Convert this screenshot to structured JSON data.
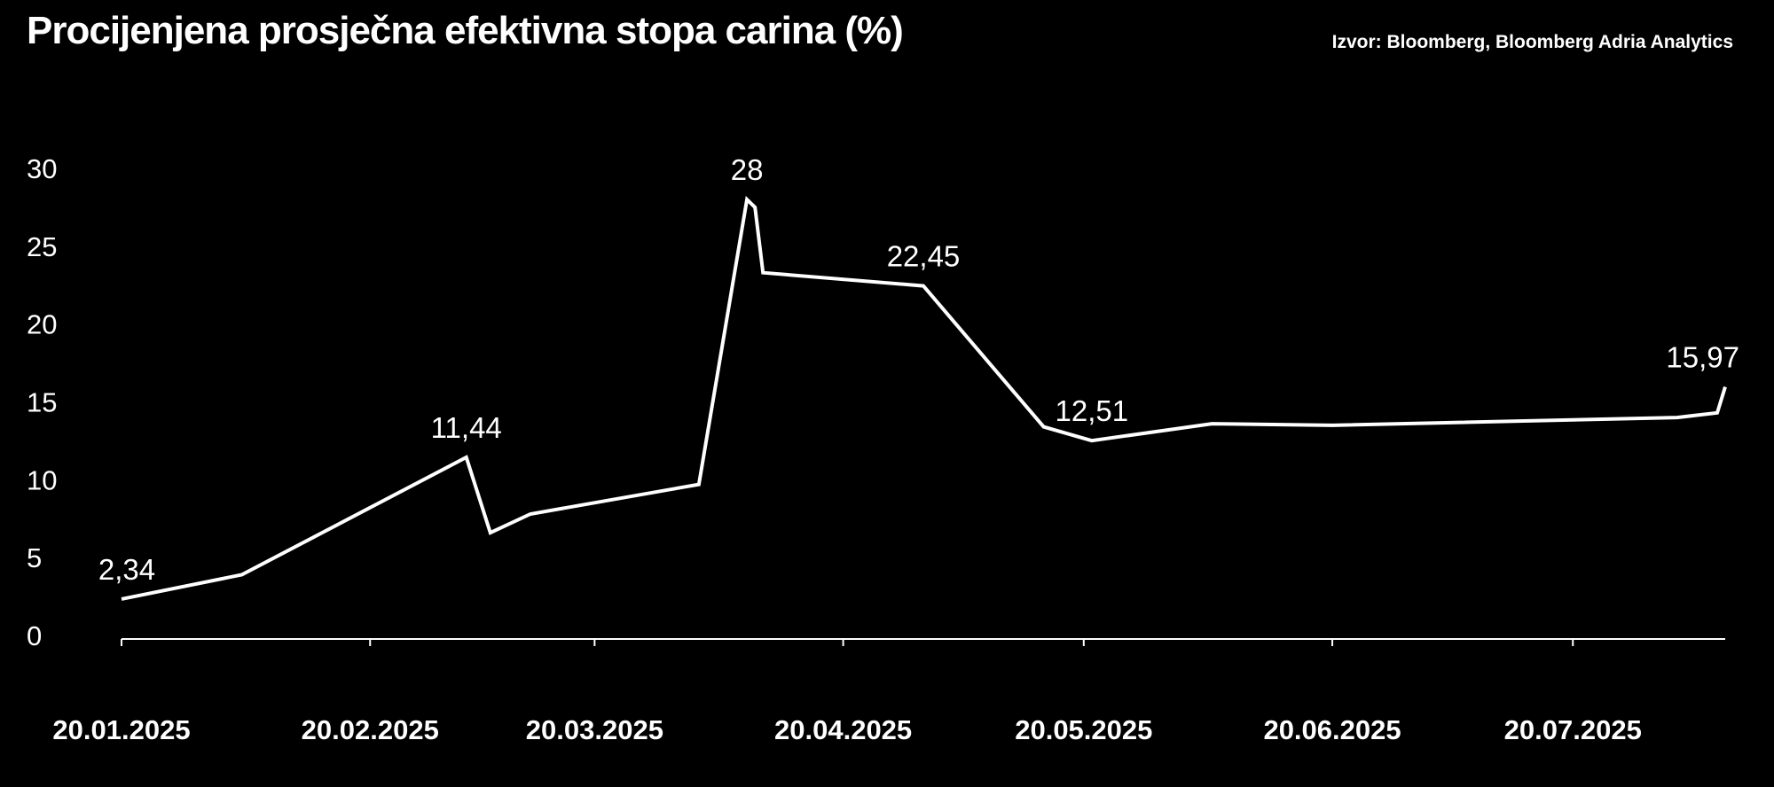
{
  "header": {
    "title": "Procijenjena prosječna efektivna stopa carina (%)",
    "source": "Izvor: Bloomberg, Bloomberg Adria Analytics"
  },
  "chart_data": {
    "type": "line",
    "title": "Procijenjena prosječna efektivna stopa carina (%)",
    "xlabel": "",
    "ylabel": "",
    "ylim": [
      0,
      30
    ],
    "yticks": [
      0,
      5,
      10,
      15,
      20,
      25,
      30
    ],
    "xticks": [
      "20.01.2025",
      "20.02.2025",
      "20.03.2025",
      "20.04.2025",
      "20.05.2025",
      "20.06.2025",
      "20.07.2025"
    ],
    "xlim": [
      "2025-01-20",
      "2025-08-08"
    ],
    "grid": false,
    "legend": "none",
    "series": [
      {
        "color": "#ffffff",
        "points": [
          {
            "x": "2025-01-20",
            "y": 2.34
          },
          {
            "x": "2025-02-04",
            "y": 3.9
          },
          {
            "x": "2025-03-04",
            "y": 11.44
          },
          {
            "x": "2025-03-07",
            "y": 6.6
          },
          {
            "x": "2025-03-12",
            "y": 7.8
          },
          {
            "x": "2025-04-02",
            "y": 9.7
          },
          {
            "x": "2025-04-08",
            "y": 28.0
          },
          {
            "x": "2025-04-09",
            "y": 27.5
          },
          {
            "x": "2025-04-10",
            "y": 23.3
          },
          {
            "x": "2025-04-30",
            "y": 22.45
          },
          {
            "x": "2025-05-15",
            "y": 13.4
          },
          {
            "x": "2025-05-21",
            "y": 12.51
          },
          {
            "x": "2025-06-05",
            "y": 13.6
          },
          {
            "x": "2025-06-20",
            "y": 13.5
          },
          {
            "x": "2025-08-02",
            "y": 14.0
          },
          {
            "x": "2025-08-07",
            "y": 14.3
          },
          {
            "x": "2025-08-08",
            "y": 15.97
          }
        ]
      }
    ],
    "annotations": [
      {
        "x": "2025-01-20",
        "y": 2.34,
        "text": "2,34"
      },
      {
        "x": "2025-03-04",
        "y": 11.44,
        "text": "11,44"
      },
      {
        "x": "2025-04-08",
        "y": 28.0,
        "text": "28"
      },
      {
        "x": "2025-04-30",
        "y": 22.45,
        "text": "22,45"
      },
      {
        "x": "2025-05-21",
        "y": 12.51,
        "text": "12,51"
      },
      {
        "x": "2025-08-08",
        "y": 15.97,
        "text": "15,97"
      }
    ]
  }
}
